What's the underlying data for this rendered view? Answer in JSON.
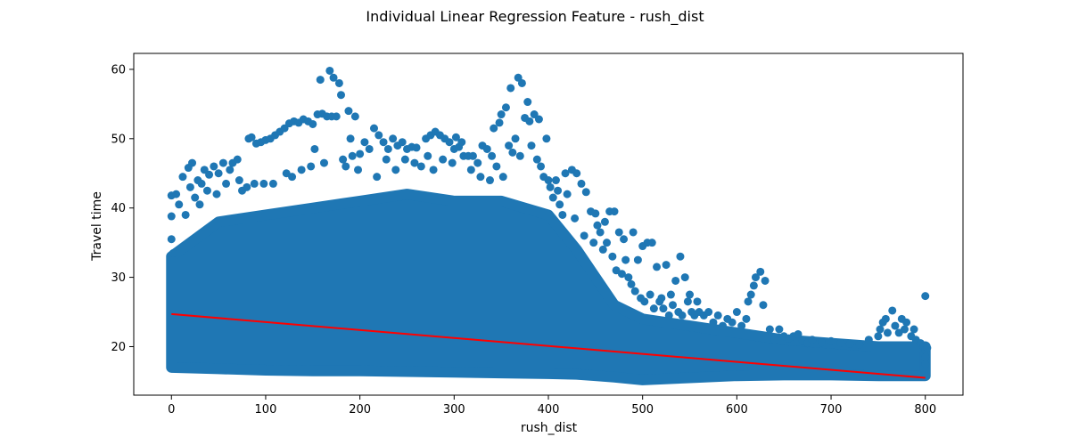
{
  "chart_data": {
    "type": "scatter",
    "title": "Individual Linear Regression Feature - rush_dist",
    "xlabel": "rush_dist",
    "ylabel": "Travel time",
    "xlim": [
      -40,
      840
    ],
    "ylim": [
      13,
      62.3
    ],
    "xticks": [
      0,
      100,
      200,
      300,
      400,
      500,
      600,
      700,
      800
    ],
    "yticks": [
      20,
      30,
      40,
      50,
      60
    ],
    "grid": false,
    "legend": "none",
    "colors": {
      "points": "#1f77b4",
      "regression_line": "#ff0000"
    },
    "regression_line": {
      "x": [
        0,
        800
      ],
      "y": [
        24.7,
        15.5
      ]
    },
    "density_band": {
      "x": [
        0,
        50,
        100,
        150,
        200,
        250,
        300,
        350,
        400,
        430,
        450,
        470,
        500,
        550,
        600,
        650,
        700,
        750,
        800
      ],
      "y_low": [
        17,
        16.8,
        16.6,
        16.5,
        16.5,
        16.4,
        16.3,
        16.2,
        16.1,
        16.0,
        15.8,
        15.6,
        15.2,
        15.5,
        15.8,
        15.9,
        15.9,
        15.8,
        15.8
      ],
      "y_high": [
        33,
        38,
        39,
        40,
        41,
        42,
        41,
        41,
        39,
        34,
        30,
        26,
        24,
        23,
        22,
        21,
        20.5,
        20,
        20
      ]
    },
    "series": [
      {
        "values": [
          [
            0,
            41.8
          ],
          [
            0,
            38.8
          ],
          [
            0,
            35.5
          ],
          [
            2,
            33.5
          ],
          [
            5,
            42
          ],
          [
            8,
            40.5
          ],
          [
            12,
            44.5
          ],
          [
            15,
            39
          ],
          [
            18,
            45.8
          ],
          [
            20,
            43
          ],
          [
            22,
            46.5
          ],
          [
            25,
            41.5
          ],
          [
            28,
            44
          ],
          [
            30,
            40.5
          ],
          [
            32,
            43.5
          ],
          [
            35,
            45.5
          ],
          [
            38,
            42.5
          ],
          [
            40,
            44.8
          ],
          [
            45,
            46
          ],
          [
            48,
            42
          ],
          [
            50,
            45
          ],
          [
            55,
            46.5
          ],
          [
            58,
            43.5
          ],
          [
            62,
            45.5
          ],
          [
            65,
            46.5
          ],
          [
            70,
            47
          ],
          [
            72,
            44
          ],
          [
            75,
            42.5
          ],
          [
            80,
            43
          ],
          [
            82,
            50
          ],
          [
            85,
            50.2
          ],
          [
            88,
            43.5
          ],
          [
            90,
            49.3
          ],
          [
            95,
            49.5
          ],
          [
            98,
            43.5
          ],
          [
            100,
            49.8
          ],
          [
            105,
            50
          ],
          [
            108,
            43.5
          ],
          [
            110,
            50.5
          ],
          [
            115,
            51
          ],
          [
            120,
            51.5
          ],
          [
            122,
            45
          ],
          [
            125,
            52.2
          ],
          [
            128,
            44.5
          ],
          [
            130,
            52.5
          ],
          [
            135,
            52.3
          ],
          [
            138,
            45.5
          ],
          [
            140,
            52.8
          ],
          [
            145,
            52.5
          ],
          [
            148,
            46
          ],
          [
            150,
            52.1
          ],
          [
            152,
            48.5
          ],
          [
            155,
            53.5
          ],
          [
            158,
            58.5
          ],
          [
            160,
            53.6
          ],
          [
            162,
            46.5
          ],
          [
            165,
            53.2
          ],
          [
            168,
            59.8
          ],
          [
            170,
            53.2
          ],
          [
            172,
            58.8
          ],
          [
            175,
            53.2
          ],
          [
            178,
            58
          ],
          [
            180,
            56.3
          ],
          [
            182,
            47
          ],
          [
            185,
            46
          ],
          [
            188,
            54
          ],
          [
            190,
            50
          ],
          [
            192,
            47.5
          ],
          [
            195,
            53.2
          ],
          [
            198,
            45.5
          ],
          [
            200,
            47.8
          ],
          [
            205,
            49.5
          ],
          [
            210,
            48.5
          ],
          [
            215,
            51.5
          ],
          [
            218,
            44.5
          ],
          [
            220,
            50.5
          ],
          [
            225,
            49.5
          ],
          [
            228,
            47
          ],
          [
            230,
            48.5
          ],
          [
            235,
            50
          ],
          [
            238,
            45.5
          ],
          [
            240,
            49
          ],
          [
            245,
            49.5
          ],
          [
            248,
            47
          ],
          [
            250,
            48.5
          ],
          [
            255,
            48.8
          ],
          [
            258,
            46.5
          ],
          [
            260,
            48.7
          ],
          [
            265,
            46
          ],
          [
            270,
            50
          ],
          [
            272,
            47.5
          ],
          [
            275,
            50.5
          ],
          [
            278,
            45.5
          ],
          [
            280,
            51
          ],
          [
            285,
            50.5
          ],
          [
            288,
            47
          ],
          [
            290,
            50
          ],
          [
            295,
            49.5
          ],
          [
            298,
            46.5
          ],
          [
            300,
            48.5
          ],
          [
            302,
            50.2
          ],
          [
            305,
            48.8
          ],
          [
            308,
            49.5
          ],
          [
            310,
            47.5
          ],
          [
            315,
            47.5
          ],
          [
            318,
            45.5
          ],
          [
            320,
            47.5
          ],
          [
            325,
            46.5
          ],
          [
            328,
            44.5
          ],
          [
            330,
            49
          ],
          [
            335,
            48.5
          ],
          [
            338,
            44
          ],
          [
            340,
            47.5
          ],
          [
            342,
            51.5
          ],
          [
            345,
            46
          ],
          [
            348,
            52.3
          ],
          [
            350,
            53.5
          ],
          [
            352,
            44.5
          ],
          [
            355,
            54.5
          ],
          [
            358,
            49
          ],
          [
            360,
            57.3
          ],
          [
            362,
            48
          ],
          [
            365,
            50
          ],
          [
            368,
            58.8
          ],
          [
            370,
            47.5
          ],
          [
            372,
            58
          ],
          [
            375,
            53
          ],
          [
            378,
            55.3
          ],
          [
            380,
            52.5
          ],
          [
            382,
            49
          ],
          [
            385,
            53.5
          ],
          [
            388,
            47
          ],
          [
            390,
            52.8
          ],
          [
            392,
            46
          ],
          [
            395,
            44.5
          ],
          [
            398,
            50
          ],
          [
            400,
            44
          ],
          [
            402,
            43
          ],
          [
            405,
            41.5
          ],
          [
            408,
            44
          ],
          [
            410,
            42.5
          ],
          [
            412,
            40.5
          ],
          [
            415,
            39
          ],
          [
            418,
            45
          ],
          [
            420,
            42
          ],
          [
            425,
            45.5
          ],
          [
            428,
            38.5
          ],
          [
            430,
            45
          ],
          [
            435,
            43.5
          ],
          [
            438,
            36
          ],
          [
            440,
            42.3
          ],
          [
            445,
            39.5
          ],
          [
            448,
            35
          ],
          [
            450,
            39.2
          ],
          [
            452,
            37.5
          ],
          [
            455,
            36.5
          ],
          [
            458,
            34
          ],
          [
            460,
            38
          ],
          [
            462,
            35
          ],
          [
            465,
            39.5
          ],
          [
            468,
            33
          ],
          [
            470,
            39.5
          ],
          [
            472,
            31
          ],
          [
            475,
            36.5
          ],
          [
            478,
            30.5
          ],
          [
            480,
            35.5
          ],
          [
            482,
            32.5
          ],
          [
            485,
            30
          ],
          [
            488,
            29
          ],
          [
            490,
            36.5
          ],
          [
            492,
            28
          ],
          [
            495,
            32.5
          ],
          [
            498,
            27
          ],
          [
            500,
            34.5
          ],
          [
            502,
            26.5
          ],
          [
            505,
            35
          ],
          [
            508,
            27.5
          ],
          [
            510,
            35
          ],
          [
            512,
            25.5
          ],
          [
            515,
            31.5
          ],
          [
            518,
            26.5
          ],
          [
            520,
            27
          ],
          [
            522,
            25.5
          ],
          [
            525,
            31.8
          ],
          [
            528,
            24.5
          ],
          [
            530,
            27.5
          ],
          [
            532,
            26
          ],
          [
            535,
            29.5
          ],
          [
            538,
            25
          ],
          [
            540,
            33
          ],
          [
            542,
            24.5
          ],
          [
            545,
            30
          ],
          [
            548,
            26.5
          ],
          [
            550,
            27.5
          ],
          [
            552,
            25
          ],
          [
            555,
            24.5
          ],
          [
            558,
            26.5
          ],
          [
            560,
            25
          ],
          [
            565,
            24.5
          ],
          [
            570,
            25
          ],
          [
            575,
            23.5
          ],
          [
            580,
            24.5
          ],
          [
            585,
            23
          ],
          [
            590,
            24
          ],
          [
            595,
            23.5
          ],
          [
            600,
            25
          ],
          [
            605,
            23
          ],
          [
            610,
            24
          ],
          [
            612,
            26.5
          ],
          [
            615,
            27.5
          ],
          [
            618,
            28.8
          ],
          [
            620,
            30
          ],
          [
            625,
            30.8
          ],
          [
            628,
            26
          ],
          [
            630,
            29.5
          ],
          [
            635,
            22.5
          ],
          [
            640,
            21
          ],
          [
            645,
            22.5
          ],
          [
            650,
            21.5
          ],
          [
            655,
            21.2
          ],
          [
            660,
            21.5
          ],
          [
            665,
            21.8
          ],
          [
            670,
            20.8
          ],
          [
            675,
            20.5
          ],
          [
            680,
            21
          ],
          [
            690,
            20.6
          ],
          [
            700,
            20.8
          ],
          [
            710,
            20.5
          ],
          [
            720,
            20.4
          ],
          [
            730,
            20.3
          ],
          [
            740,
            21
          ],
          [
            750,
            21.5
          ],
          [
            752,
            22.5
          ],
          [
            755,
            23.5
          ],
          [
            758,
            24
          ],
          [
            760,
            22
          ],
          [
            765,
            25.2
          ],
          [
            768,
            23
          ],
          [
            772,
            22
          ],
          [
            775,
            24
          ],
          [
            778,
            22.5
          ],
          [
            780,
            23.5
          ],
          [
            785,
            21.5
          ],
          [
            788,
            22.5
          ],
          [
            790,
            21
          ],
          [
            795,
            20.5
          ],
          [
            798,
            20
          ],
          [
            800,
            27.3
          ],
          [
            800,
            19.5
          ],
          [
            800,
            18.5
          ],
          [
            800,
            17.5
          ],
          [
            802,
            19.8
          ]
        ]
      }
    ]
  }
}
